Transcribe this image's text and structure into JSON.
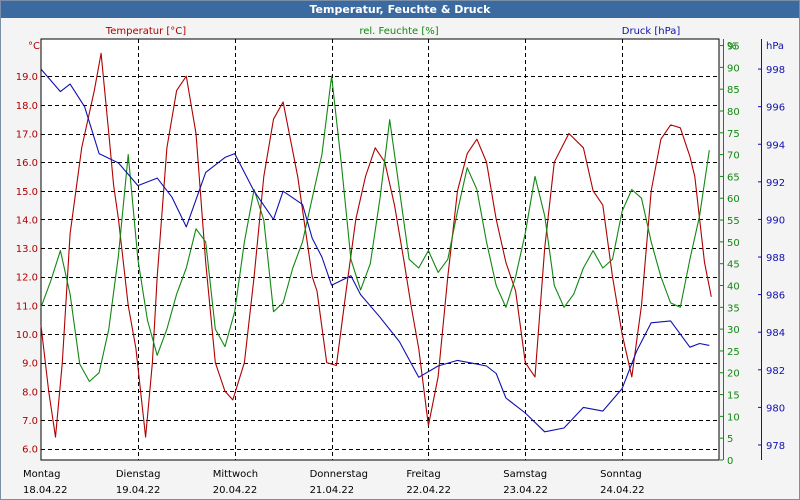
{
  "title": "Temperatur, Feuchte & Druck",
  "colors": {
    "temperature": "#b00000",
    "humidity": "#118811",
    "pressure": "#1010b0",
    "titlebar": "#3a6aa0"
  },
  "chart_data": {
    "type": "line",
    "title": "Temperatur, Feuchte & Druck",
    "grid": true,
    "x_day_labels": [
      {
        "day": "Montag",
        "date": "18.04.22"
      },
      {
        "day": "Dienstag",
        "date": "19.04.22"
      },
      {
        "day": "Mittwoch",
        "date": "20.04.22"
      },
      {
        "day": "Donnerstag",
        "date": "21.04.22"
      },
      {
        "day": "Freitag",
        "date": "22.04.22"
      },
      {
        "day": "Samstag",
        "date": "23.04.22"
      },
      {
        "day": "Sonntag",
        "date": "24.04.22"
      }
    ],
    "xlim": [
      0,
      7
    ],
    "axes": {
      "temperature": {
        "unit_label": "°C",
        "ylim": [
          5.6,
          20.3
        ],
        "ticks": [
          6.0,
          7.0,
          8.0,
          9.0,
          10.0,
          11.0,
          12.0,
          13.0,
          14.0,
          15.0,
          16.0,
          17.0,
          18.0,
          19.0
        ]
      },
      "humidity": {
        "unit_label": "%",
        "ylim": [
          0,
          96.5
        ],
        "ticks": [
          0,
          5,
          10,
          15,
          20,
          25,
          30,
          35,
          40,
          45,
          50,
          55,
          60,
          65,
          70,
          75,
          80,
          85,
          90,
          95
        ]
      },
      "pressure": {
        "unit_label": "hPa",
        "ylim": [
          977.2,
          999.6
        ],
        "ticks": [
          978,
          980,
          982,
          984,
          986,
          988,
          990,
          992,
          994,
          996,
          998
        ]
      }
    },
    "series": [
      {
        "name": "Temperatur [°C]",
        "axis": "temperature",
        "x": [
          0.0,
          0.08,
          0.15,
          0.22,
          0.3,
          0.42,
          0.55,
          0.62,
          0.7,
          0.75,
          0.8,
          0.9,
          0.98,
          1.08,
          1.15,
          1.2,
          1.3,
          1.4,
          1.5,
          1.6,
          1.7,
          1.8,
          1.9,
          1.98,
          2.1,
          2.2,
          2.3,
          2.4,
          2.5,
          2.65,
          2.8,
          2.85,
          2.95,
          3.05,
          3.15,
          3.25,
          3.35,
          3.45,
          3.55,
          3.65,
          3.75,
          3.82,
          3.9,
          4.0,
          4.1,
          4.2,
          4.3,
          4.4,
          4.5,
          4.6,
          4.7,
          4.8,
          4.9,
          5.0,
          5.1,
          5.2,
          5.3,
          5.45,
          5.6,
          5.7,
          5.8,
          5.9,
          6.0,
          6.1,
          6.2,
          6.3,
          6.4,
          6.5,
          6.6,
          6.7,
          6.75,
          6.85,
          6.92
        ],
        "values": [
          10.3,
          8.0,
          6.4,
          9.0,
          13.5,
          16.5,
          18.5,
          19.8,
          17.0,
          15.2,
          14.0,
          11.0,
          9.5,
          6.4,
          9.0,
          12.0,
          16.5,
          18.5,
          19.0,
          17.0,
          12.5,
          9.0,
          8.0,
          7.7,
          9.0,
          12.0,
          15.5,
          17.5,
          18.1,
          15.5,
          12.0,
          11.5,
          9.0,
          8.9,
          11.5,
          14.0,
          15.5,
          16.5,
          16.0,
          14.5,
          12.5,
          11.0,
          9.5,
          6.8,
          8.5,
          12.0,
          15.0,
          16.3,
          16.8,
          16.0,
          14.0,
          12.5,
          11.5,
          9.0,
          8.5,
          13.0,
          16.0,
          17.0,
          16.5,
          15.0,
          14.5,
          12.0,
          10.0,
          8.5,
          11.0,
          15.0,
          16.8,
          17.3,
          17.2,
          16.2,
          15.5,
          12.5,
          11.3
        ]
      },
      {
        "name": "rel. Feuchte [%]",
        "axis": "humidity",
        "x": [
          0.0,
          0.1,
          0.2,
          0.3,
          0.4,
          0.5,
          0.6,
          0.7,
          0.8,
          0.9,
          1.0,
          1.1,
          1.2,
          1.3,
          1.4,
          1.5,
          1.6,
          1.7,
          1.8,
          1.9,
          2.0,
          2.1,
          2.2,
          2.3,
          2.4,
          2.5,
          2.6,
          2.7,
          2.8,
          2.9,
          3.0,
          3.1,
          3.2,
          3.3,
          3.4,
          3.5,
          3.6,
          3.7,
          3.8,
          3.9,
          4.0,
          4.1,
          4.2,
          4.3,
          4.4,
          4.5,
          4.6,
          4.7,
          4.8,
          4.9,
          5.0,
          5.1,
          5.2,
          5.3,
          5.4,
          5.5,
          5.6,
          5.7,
          5.8,
          5.9,
          6.0,
          6.1,
          6.2,
          6.3,
          6.4,
          6.5,
          6.6,
          6.7,
          6.8,
          6.9
        ],
        "values": [
          35.0,
          41.0,
          48.0,
          38.0,
          22.0,
          18.0,
          20.0,
          30.0,
          47.0,
          70.0,
          46.0,
          32.0,
          24.0,
          30.0,
          38.0,
          44.0,
          53.0,
          50.0,
          30.0,
          26.0,
          34.0,
          50.0,
          62.0,
          55.0,
          34.0,
          36.0,
          44.0,
          50.0,
          60.0,
          70.0,
          88.0,
          68.0,
          46.0,
          39.0,
          45.0,
          60.0,
          78.0,
          62.0,
          46.0,
          44.0,
          48.0,
          43.0,
          46.0,
          57.0,
          67.0,
          62.0,
          50.0,
          40.0,
          35.0,
          42.0,
          52.0,
          65.0,
          56.0,
          40.0,
          35.0,
          38.0,
          44.0,
          48.0,
          44.0,
          46.0,
          57.0,
          62.0,
          60.0,
          50.0,
          42.0,
          36.0,
          35.0,
          46.0,
          56.0,
          71.0
        ]
      },
      {
        "name": "Druck [hPa]",
        "axis": "pressure",
        "x": [
          0.0,
          0.2,
          0.3,
          0.45,
          0.6,
          0.8,
          1.0,
          1.2,
          1.35,
          1.5,
          1.7,
          1.9,
          2.0,
          2.2,
          2.4,
          2.5,
          2.7,
          2.8,
          2.9,
          3.0,
          3.2,
          3.3,
          3.5,
          3.7,
          3.9,
          4.1,
          4.3,
          4.5,
          4.6,
          4.7,
          4.8,
          5.0,
          5.2,
          5.4,
          5.6,
          5.8,
          6.0,
          6.15,
          6.3,
          6.5,
          6.7,
          6.8,
          6.9
        ],
        "values": [
          998.0,
          996.8,
          997.2,
          996.0,
          993.5,
          993.0,
          991.8,
          992.2,
          991.2,
          989.6,
          992.5,
          993.3,
          993.5,
          991.5,
          990.0,
          991.5,
          990.8,
          989.0,
          988.0,
          986.5,
          987.0,
          986.0,
          984.8,
          983.5,
          981.6,
          982.2,
          982.5,
          982.3,
          982.2,
          981.8,
          980.5,
          979.7,
          978.7,
          978.9,
          980.0,
          979.8,
          981.0,
          983.0,
          984.5,
          984.6,
          983.2,
          983.4,
          983.3
        ],
        "x_recalc": "none"
      }
    ]
  }
}
